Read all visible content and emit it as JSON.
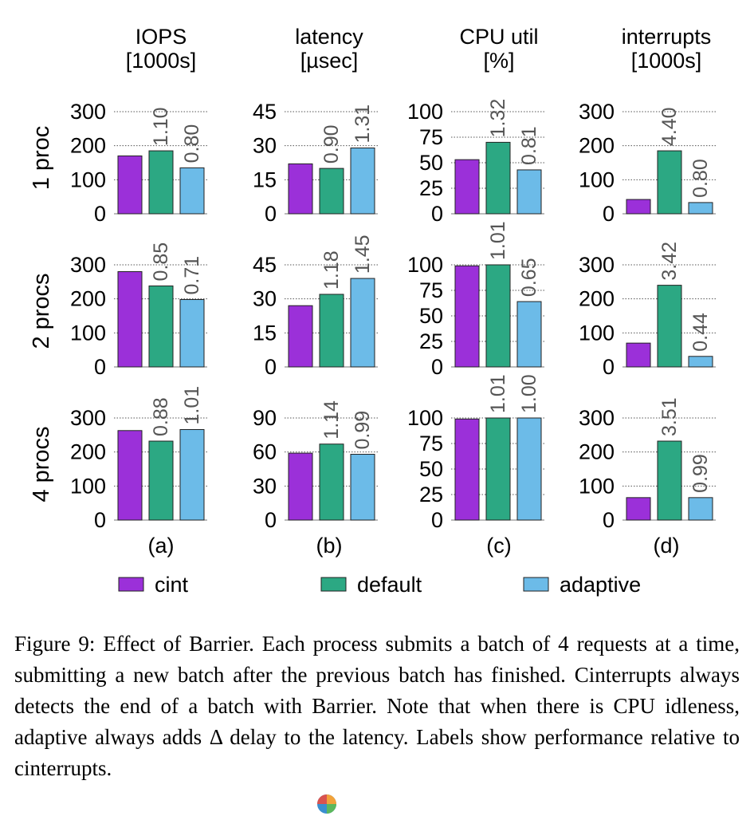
{
  "chart_data": {
    "type": "bar",
    "columns": [
      {
        "key": "iops",
        "title_lines": [
          "IOPS",
          "[1000s]"
        ],
        "panel_label": "(a)"
      },
      {
        "key": "latency",
        "title_lines": [
          "latency",
          "[µsec]"
        ],
        "panel_label": "(b)"
      },
      {
        "key": "cpu",
        "title_lines": [
          "CPU util",
          "[%]"
        ],
        "panel_label": "(c)"
      },
      {
        "key": "interrupts",
        "title_lines": [
          "interrupts",
          "[1000s]"
        ],
        "panel_label": "(d)"
      }
    ],
    "rows": [
      {
        "label": "1 proc"
      },
      {
        "label": "2 procs"
      },
      {
        "label": "4 procs"
      }
    ],
    "series": [
      {
        "name": "cint",
        "color": "#9b30d9"
      },
      {
        "name": "default",
        "color": "#2ca883"
      },
      {
        "name": "adaptive",
        "color": "#6cbbe8"
      }
    ],
    "panels": [
      [
        {
          "ylim": [
            0,
            300
          ],
          "ticks": [
            "0",
            "100",
            "200",
            "300"
          ],
          "values": [
            170,
            185,
            135
          ],
          "labels": [
            "",
            "1.10",
            "0.80"
          ]
        },
        {
          "ylim": [
            0,
            45
          ],
          "ticks": [
            "0",
            "15",
            "30",
            "45"
          ],
          "values": [
            22,
            20,
            29
          ],
          "labels": [
            "",
            "0.90",
            "1.31"
          ]
        },
        {
          "ylim": [
            0,
            100
          ],
          "ticks": [
            "0",
            "25",
            "50",
            "75",
            "100"
          ],
          "values": [
            53,
            70,
            43
          ],
          "labels": [
            "",
            "1.32",
            "0.81"
          ]
        },
        {
          "ylim": [
            0,
            300
          ],
          "ticks": [
            "0",
            "100",
            "200",
            "300"
          ],
          "values": [
            42,
            185,
            33
          ],
          "labels": [
            "",
            "4.40",
            "0.80"
          ]
        }
      ],
      [
        {
          "ylim": [
            0,
            300
          ],
          "ticks": [
            "0",
            "100",
            "200",
            "300"
          ],
          "values": [
            280,
            238,
            198
          ],
          "labels": [
            "",
            "0.85",
            "0.71"
          ]
        },
        {
          "ylim": [
            0,
            45
          ],
          "ticks": [
            "0",
            "15",
            "30",
            "45"
          ],
          "values": [
            27,
            32,
            39
          ],
          "labels": [
            "",
            "1.18",
            "1.45"
          ]
        },
        {
          "ylim": [
            0,
            100
          ],
          "ticks": [
            "0",
            "25",
            "50",
            "75",
            "100"
          ],
          "values": [
            99,
            100,
            64
          ],
          "labels": [
            "",
            "1.01",
            "0.65"
          ]
        },
        {
          "ylim": [
            0,
            300
          ],
          "ticks": [
            "0",
            "100",
            "200",
            "300"
          ],
          "values": [
            70,
            240,
            31
          ],
          "labels": [
            "",
            "3.42",
            "0.44"
          ]
        }
      ],
      [
        {
          "ylim": [
            0,
            300
          ],
          "ticks": [
            "0",
            "100",
            "200",
            "300"
          ],
          "values": [
            263,
            232,
            266
          ],
          "labels": [
            "",
            "0.88",
            "1.01"
          ]
        },
        {
          "ylim": [
            0,
            90
          ],
          "ticks": [
            "0",
            "30",
            "60",
            "90"
          ],
          "values": [
            59,
            67,
            58
          ],
          "labels": [
            "",
            "1.14",
            "0.99"
          ]
        },
        {
          "ylim": [
            0,
            100
          ],
          "ticks": [
            "0",
            "25",
            "50",
            "75",
            "100"
          ],
          "values": [
            99,
            100,
            100
          ],
          "labels": [
            "",
            "1.01",
            "1.00"
          ]
        },
        {
          "ylim": [
            0,
            300
          ],
          "ticks": [
            "0",
            "100",
            "200",
            "300"
          ],
          "values": [
            66,
            232,
            66
          ],
          "labels": [
            "",
            "3.51",
            "0.99"
          ]
        }
      ]
    ],
    "grid": true,
    "legend_position": "bottom"
  },
  "caption": "Figure 9: Effect of Barrier. Each process submits a batch of 4 requests at a time, submitting a new batch after the previous batch has finished. Cinterrupts always detects the end of a batch with Barrier. Note that when there is CPU idleness, adaptive always adds Δ delay to the latency. Labels show performance relative to cinterrupts."
}
